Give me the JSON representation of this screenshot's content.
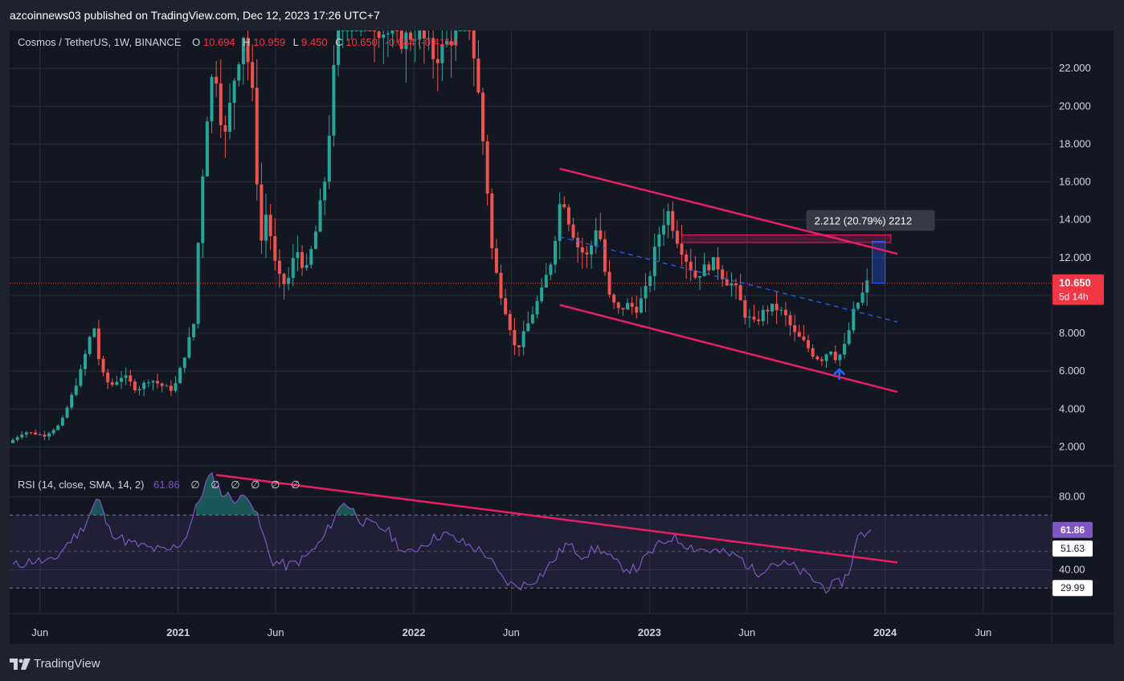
{
  "header": {
    "published_line": "azcoinnews03 published on TradingView.com, Dec 12, 2023 17:26 UTC+7"
  },
  "legend": {
    "symbol": "Cosmos / TetherUS, 1W, BINANCE",
    "o_label": "O",
    "o_value": "10.694",
    "h_label": "H",
    "h_value": "10.959",
    "l_label": "L",
    "l_value": "9.450",
    "c_label": "C",
    "c_value": "10.650",
    "change": "-0.044 (-0.41%)"
  },
  "price_badge": {
    "value": "10.650",
    "countdown": "5d 14h"
  },
  "measure_label": "2.212 (20.79%) 2212",
  "rsi_legend": {
    "title": "RSI (14, close, SMA, 14, 2)",
    "value": "61.86",
    "extras": [
      "∅",
      "∅",
      "∅",
      "∅",
      "∅",
      "∅"
    ]
  },
  "rsi_badges": {
    "current": "61.86",
    "sma": "51.63",
    "lower": "29.99"
  },
  "footer": {
    "logo_text": "TradingView"
  },
  "colors": {
    "up": "#26a69a",
    "down": "#ef5350",
    "trendline": "#e91e63",
    "midline": "#2962ff",
    "rsi_line": "#7e57c2",
    "badge_red": "#f23645",
    "background": "#131722"
  },
  "chart_data": [
    {
      "type": "candlestick",
      "title": "Cosmos / TetherUS, 1W, BINANCE",
      "ylim": [
        1.0,
        24.0
      ],
      "y_ticks": [
        "22.000",
        "20.000",
        "18.000",
        "16.000",
        "14.000",
        "12.000",
        "10.000",
        "8.000",
        "6.000",
        "4.000",
        "2.000"
      ],
      "y_tick_values": [
        22,
        20,
        18,
        16,
        14,
        12,
        10,
        8,
        6,
        4,
        2
      ],
      "x_ticks": [
        "Jun",
        "2021",
        "Jun",
        "2022",
        "Jun",
        "2023",
        "Jun",
        "2024",
        "Jun"
      ],
      "x_tick_dates": [
        "2020-06-01",
        "2021-01-01",
        "2021-06-01",
        "2022-01-01",
        "2022-06-01",
        "2023-01-01",
        "2023-06-01",
        "2024-01-01",
        "2024-06-01"
      ],
      "xlim": [
        "2020-04-15",
        "2024-09-15"
      ],
      "current_price": 10.65,
      "grid": true,
      "price_path": [
        [
          "2020-04-20",
          2.2
        ],
        [
          "2020-05-15",
          2.8
        ],
        [
          "2020-06-15",
          2.6
        ],
        [
          "2020-07-10",
          3.2
        ],
        [
          "2020-07-25",
          4.5
        ],
        [
          "2020-08-10",
          6.0
        ],
        [
          "2020-08-30",
          8.5
        ],
        [
          "2020-09-10",
          6.0
        ],
        [
          "2020-09-25",
          5.2
        ],
        [
          "2020-10-15",
          5.8
        ],
        [
          "2020-11-05",
          5.0
        ],
        [
          "2020-11-25",
          5.6
        ],
        [
          "2020-12-15",
          5.2
        ],
        [
          "2021-01-01",
          5.0
        ],
        [
          "2021-01-15",
          6.5
        ],
        [
          "2021-02-01",
          8.5
        ],
        [
          "2021-02-10",
          14.0
        ],
        [
          "2021-02-20",
          19.0
        ],
        [
          "2021-03-05",
          22.5
        ],
        [
          "2021-03-20",
          18.0
        ],
        [
          "2021-04-05",
          21.5
        ],
        [
          "2021-04-20",
          24.0
        ],
        [
          "2021-05-05",
          20.0
        ],
        [
          "2021-05-15",
          12.5
        ],
        [
          "2021-05-25",
          14.5
        ],
        [
          "2021-06-10",
          11.0
        ],
        [
          "2021-06-25",
          10.5
        ],
        [
          "2021-07-10",
          12.5
        ],
        [
          "2021-07-25",
          11.2
        ],
        [
          "2021-08-10",
          13.5
        ],
        [
          "2021-08-25",
          16.5
        ],
        [
          "2021-09-10",
          23.5
        ],
        [
          "2021-09-25",
          25.0
        ],
        [
          "2021-10-20",
          25.0
        ],
        [
          "2021-11-20",
          24.0
        ],
        [
          "2021-12-20",
          23.5
        ],
        [
          "2022-01-15",
          24.0
        ],
        [
          "2022-02-10",
          22.5
        ],
        [
          "2022-03-15",
          24.0
        ],
        [
          "2022-04-05",
          24.5
        ],
        [
          "2022-04-20",
          20.0
        ],
        [
          "2022-05-01",
          16.0
        ],
        [
          "2022-05-10",
          12.0
        ],
        [
          "2022-05-20",
          10.5
        ],
        [
          "2022-06-05",
          8.5
        ],
        [
          "2022-06-15",
          7.0
        ],
        [
          "2022-06-28",
          8.0
        ],
        [
          "2022-07-10",
          9.0
        ],
        [
          "2022-07-25",
          10.2
        ],
        [
          "2022-08-10",
          12.0
        ],
        [
          "2022-08-25",
          15.5
        ],
        [
          "2022-09-05",
          14.0
        ],
        [
          "2022-09-20",
          12.5
        ],
        [
          "2022-10-05",
          12.0
        ],
        [
          "2022-10-20",
          14.0
        ],
        [
          "2022-11-05",
          10.0
        ],
        [
          "2022-11-20",
          9.2
        ],
        [
          "2022-12-05",
          9.5
        ],
        [
          "2022-12-20",
          9.3
        ],
        [
          "2023-01-05",
          10.5
        ],
        [
          "2023-01-20",
          13.0
        ],
        [
          "2023-02-05",
          14.5
        ],
        [
          "2023-02-20",
          13.0
        ],
        [
          "2023-03-05",
          12.0
        ],
        [
          "2023-03-20",
          11.0
        ],
        [
          "2023-04-05",
          11.5
        ],
        [
          "2023-04-20",
          11.8
        ],
        [
          "2023-05-05",
          10.8
        ],
        [
          "2023-05-20",
          10.5
        ],
        [
          "2023-06-05",
          9.0
        ],
        [
          "2023-06-20",
          8.5
        ],
        [
          "2023-07-05",
          9.2
        ],
        [
          "2023-07-20",
          9.4
        ],
        [
          "2023-08-05",
          9.0
        ],
        [
          "2023-08-20",
          8.0
        ],
        [
          "2023-09-05",
          7.5
        ],
        [
          "2023-09-20",
          6.8
        ],
        [
          "2023-10-01",
          6.6
        ],
        [
          "2023-10-15",
          7.2
        ],
        [
          "2023-10-25",
          6.6
        ],
        [
          "2023-11-05",
          7.2
        ],
        [
          "2023-11-15",
          8.4
        ],
        [
          "2023-11-22",
          9.4
        ],
        [
          "2023-12-01",
          9.8
        ],
        [
          "2023-12-10",
          10.65
        ]
      ],
      "drawings": {
        "channel_upper": [
          [
            "2022-08-15",
            16.7
          ],
          [
            "2024-01-20",
            12.2
          ]
        ],
        "channel_lower": [
          [
            "2022-08-15",
            9.5
          ],
          [
            "2024-01-20",
            4.9
          ]
        ],
        "channel_mid": [
          [
            "2022-08-15",
            13.1
          ],
          [
            "2024-01-20",
            8.6
          ]
        ],
        "resistance_zone": {
          "x0": "2023-02-20",
          "x1": "2024-01-10",
          "y0": 13.2,
          "y1": 12.8
        },
        "measure": {
          "x": "2023-12-22",
          "y0": 10.65,
          "y1": 12.86
        },
        "arrow": {
          "x": "2023-10-22",
          "y": 6.1
        }
      }
    },
    {
      "type": "line",
      "title": "RSI (14, close, SMA, 14, 2)",
      "ylim": [
        16,
        97
      ],
      "y_ticks": [
        "80.00",
        "40.00"
      ],
      "y_tick_values": [
        80,
        40
      ],
      "band": [
        30,
        70
      ],
      "rsi_path": [
        [
          "2020-04-20",
          42
        ],
        [
          "2020-05-20",
          45
        ],
        [
          "2020-06-20",
          44
        ],
        [
          "2020-07-15",
          55
        ],
        [
          "2020-08-05",
          62
        ],
        [
          "2020-08-30",
          80
        ],
        [
          "2020-09-15",
          62
        ],
        [
          "2020-10-15",
          55
        ],
        [
          "2020-11-15",
          52
        ],
        [
          "2020-12-15",
          50
        ],
        [
          "2021-01-10",
          56
        ],
        [
          "2021-01-25",
          70
        ],
        [
          "2021-02-10",
          85
        ],
        [
          "2021-02-20",
          92
        ],
        [
          "2021-03-10",
          82
        ],
        [
          "2021-04-05",
          78
        ],
        [
          "2021-04-20",
          82
        ],
        [
          "2021-05-10",
          62
        ],
        [
          "2021-05-25",
          45
        ],
        [
          "2021-06-20",
          42
        ],
        [
          "2021-07-15",
          46
        ],
        [
          "2021-08-10",
          55
        ],
        [
          "2021-08-30",
          68
        ],
        [
          "2021-09-15",
          78
        ],
        [
          "2021-10-15",
          66
        ],
        [
          "2021-11-20",
          62
        ],
        [
          "2021-12-20",
          48
        ],
        [
          "2022-01-20",
          55
        ],
        [
          "2022-02-15",
          60
        ],
        [
          "2022-03-10",
          56
        ],
        [
          "2022-04-05",
          52
        ],
        [
          "2022-04-25",
          48
        ],
        [
          "2022-05-15",
          36
        ],
        [
          "2022-06-05",
          31
        ],
        [
          "2022-06-25",
          32
        ],
        [
          "2022-07-20",
          38
        ],
        [
          "2022-08-25",
          54
        ],
        [
          "2022-09-20",
          48
        ],
        [
          "2022-10-15",
          52
        ],
        [
          "2022-11-15",
          42
        ],
        [
          "2022-12-10",
          40
        ],
        [
          "2023-01-10",
          52
        ],
        [
          "2023-02-05",
          58
        ],
        [
          "2023-03-10",
          52
        ],
        [
          "2023-04-15",
          50
        ],
        [
          "2023-05-20",
          47
        ],
        [
          "2023-06-15",
          38
        ],
        [
          "2023-07-10",
          44
        ],
        [
          "2023-08-10",
          42
        ],
        [
          "2023-09-10",
          35
        ],
        [
          "2023-10-01",
          30
        ],
        [
          "2023-10-25",
          33
        ],
        [
          "2023-11-05",
          38
        ],
        [
          "2023-11-20",
          58
        ],
        [
          "2023-12-01",
          60
        ],
        [
          "2023-12-10",
          61.86
        ]
      ],
      "drawings": {
        "rsi_trendline": [
          [
            "2021-03-01",
            92
          ],
          [
            "2024-01-20",
            44
          ]
        ]
      }
    }
  ]
}
